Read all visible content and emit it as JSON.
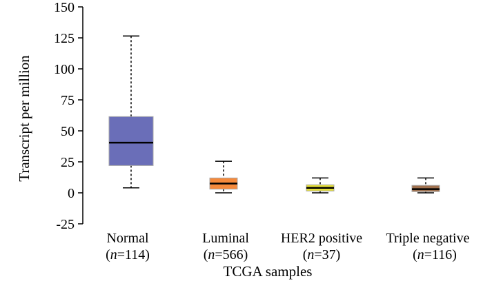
{
  "chart_data": {
    "type": "boxplot",
    "title": "",
    "xlabel": "TCGA samples",
    "ylabel": "Transcript per million",
    "ylim": [
      -25,
      150
    ],
    "yticks": [
      "150",
      "125",
      "100",
      "75",
      "50",
      "25",
      "0",
      "-25"
    ],
    "categories": [
      {
        "name": "Normal",
        "n_prefix": "(",
        "n_italic": "n",
        "n_suffix": "=114)",
        "color": "#6a6eb8",
        "whisker_low": 4,
        "q1": 22,
        "median": 40.5,
        "q3": 61.5,
        "whisker_high": 126.5
      },
      {
        "name": "Luminal",
        "n_prefix": "(",
        "n_italic": "n",
        "n_suffix": "=566)",
        "color": "#f58a3c",
        "whisker_low": 0,
        "q1": 3,
        "median": 7.5,
        "q3": 12,
        "whisker_high": 25.5
      },
      {
        "name": "HER2 positive",
        "n_prefix": "(",
        "n_italic": "n",
        "n_suffix": "=37)",
        "color": "#e6e03a",
        "whisker_low": 0,
        "q1": 1.5,
        "median": 4,
        "q3": 6.5,
        "whisker_high": 12
      },
      {
        "name": "Triple negative",
        "n_prefix": "(",
        "n_italic": "n",
        "n_suffix": "=116)",
        "color": "#a0714f",
        "whisker_low": 0,
        "q1": 1,
        "median": 3,
        "q3": 6,
        "whisker_high": 12
      }
    ]
  }
}
